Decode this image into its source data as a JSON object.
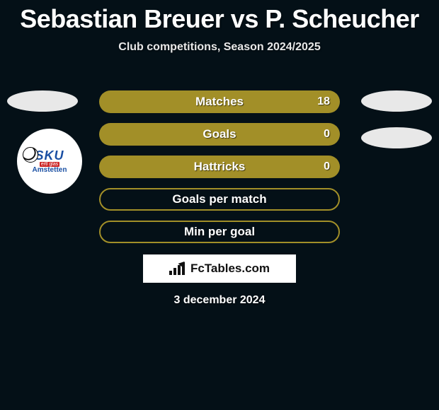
{
  "title": "Sebastian Breuer vs P. Scheucher",
  "subtitle": "Club competitions, Season 2024/2025",
  "date": "3 december 2024",
  "colors": {
    "background": "#041017",
    "accent": "#a28f28",
    "text": "#ffffff",
    "badge_bg": "#ffffff",
    "badge_text": "#111111",
    "ellipse": "#e8e8e8"
  },
  "club": {
    "top_text": "SKU",
    "mid_text": "ertl glas",
    "bottom_text": "Amstetten"
  },
  "stats": [
    {
      "label": "Matches",
      "value_right": "18",
      "filled": true
    },
    {
      "label": "Goals",
      "value_right": "0",
      "filled": true
    },
    {
      "label": "Hattricks",
      "value_right": "0",
      "filled": true
    },
    {
      "label": "Goals per match",
      "value_right": "",
      "filled": false
    },
    {
      "label": "Min per goal",
      "value_right": "",
      "filled": false
    }
  ],
  "badge": {
    "text": "FcTables.com"
  }
}
